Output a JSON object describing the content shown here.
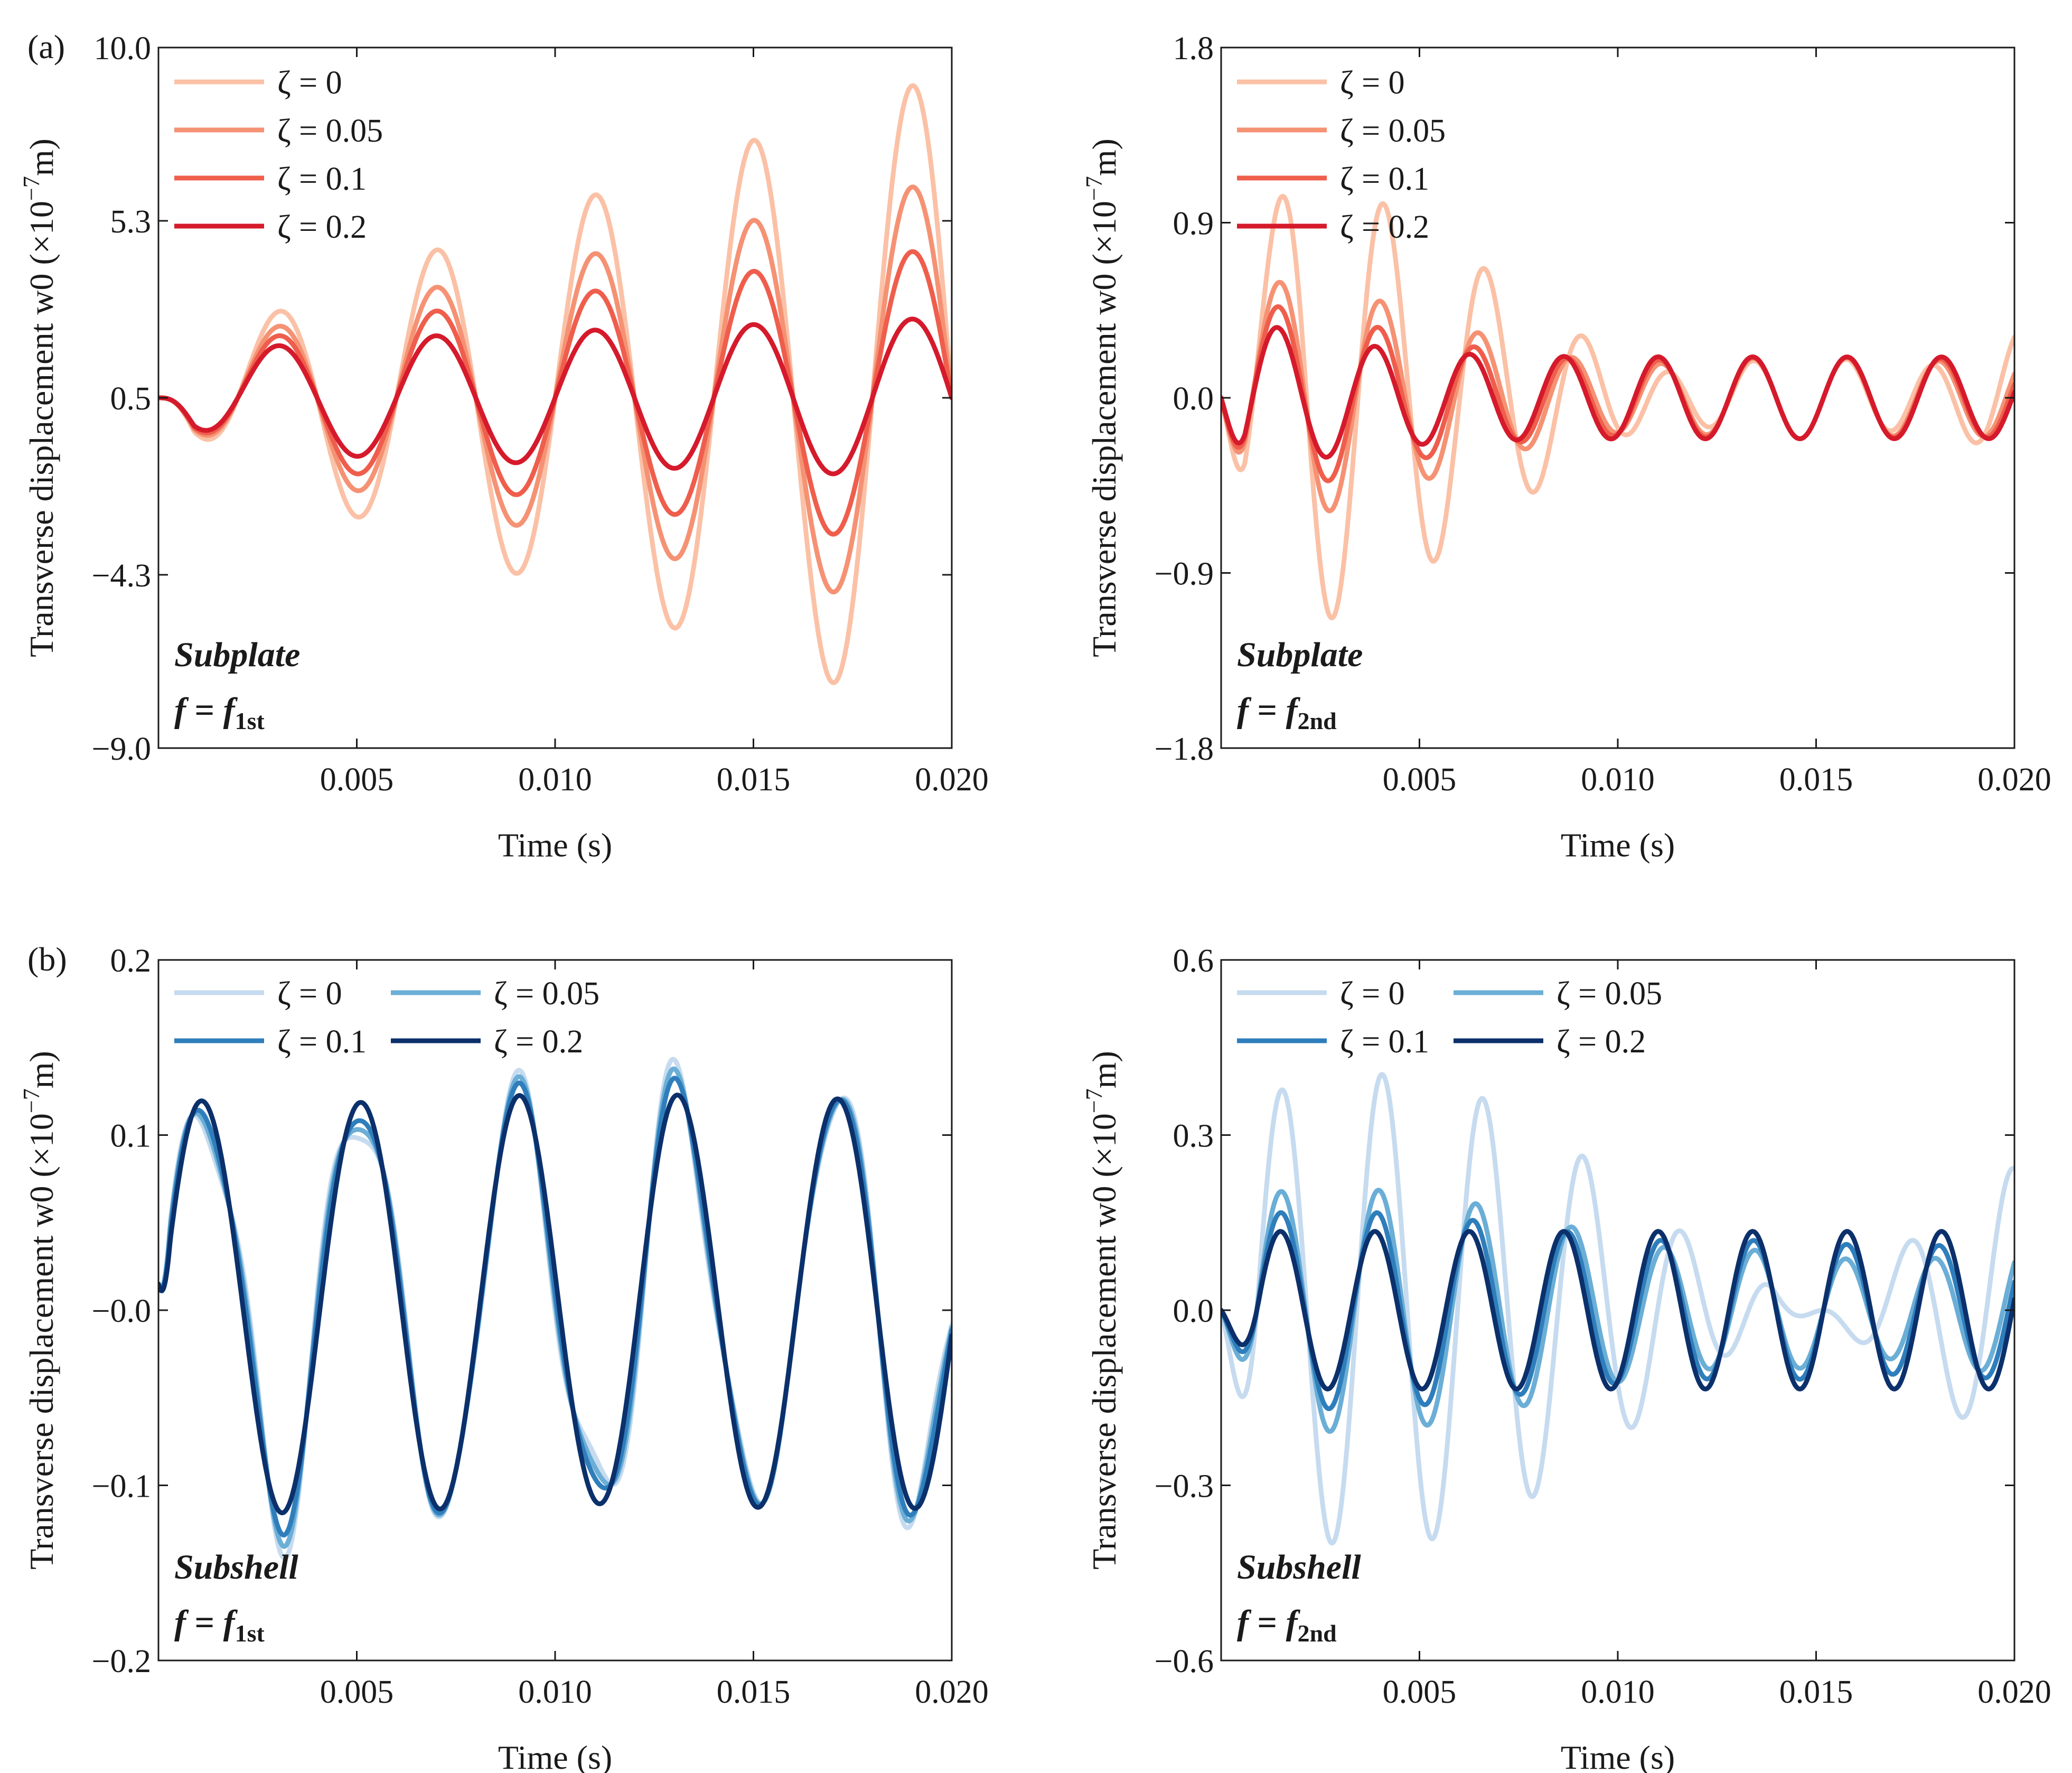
{
  "chart_data": [
    {
      "type": "line",
      "panel_label": "(a)",
      "note_title": "Subplate",
      "note_f": "f",
      "note_eq": " = ",
      "note_fsym": "f",
      "note_sub": "1st",
      "xlabel": "Time (s)",
      "ylabel_main": "Transverse displacement w0 (×10",
      "ylabel_sup": "−7",
      "ylabel_end": "m)",
      "xlim": [
        0,
        0.02
      ],
      "ylim": [
        -9.0,
        10.0
      ],
      "xticks": [
        "0.005",
        "0.010",
        "0.015",
        "0.020"
      ],
      "xtick_values": [
        0.005,
        0.01,
        0.015,
        0.02
      ],
      "yticks": [
        "10.0",
        "5.3",
        "0.5",
        "−4.3",
        "−9.0"
      ],
      "ytick_values": [
        10.0,
        5.3,
        0.5,
        -4.3,
        -9.0
      ],
      "legend_cols": 1,
      "model": {
        "kind": "first",
        "offset": 0.5,
        "freq": 250,
        "beat": 13.5,
        "scale": 0.02
      },
      "series": [
        {
          "name": "ζ = 0",
          "color": "#fbc1a6",
          "damping": 0
        },
        {
          "name": "ζ = 0.05",
          "color": "#f59274",
          "damping": 0.05
        },
        {
          "name": "ζ = 0.1",
          "color": "#ef5e4c",
          "damping": 0.1
        },
        {
          "name": "ζ = 0.2",
          "color": "#d51a2b",
          "damping": 0.2
        }
      ]
    },
    {
      "type": "line",
      "panel_label": "",
      "note_title": "Subplate",
      "note_f": "f",
      "note_eq": " = ",
      "note_fsym": "f",
      "note_sub": "2nd",
      "xlabel": "Time (s)",
      "ylabel_main": "Transverse displacement w0 (×10",
      "ylabel_sup": "−7",
      "ylabel_end": "m)",
      "xlim": [
        0,
        0.02
      ],
      "ylim": [
        -1.8,
        1.8
      ],
      "xticks": [
        "0.005",
        "0.010",
        "0.015",
        "0.020"
      ],
      "xtick_values": [
        0.005,
        0.01,
        0.015,
        0.02
      ],
      "yticks": [
        "1.8",
        "0.9",
        "0.0",
        "−0.9",
        "−1.8"
      ],
      "ytick_values": [
        1.8,
        0.9,
        0.0,
        -0.9,
        -1.8
      ],
      "legend_cols": 1,
      "model": {
        "kind": "second",
        "offset": 0.0,
        "freq": 420,
        "freq2": 382,
        "amp": 0.21,
        "transient": 0.5,
        "tau": 0.002
      },
      "series": [
        {
          "name": "ζ = 0",
          "color": "#fbc1a6",
          "damping": 0
        },
        {
          "name": "ζ = 0.05",
          "color": "#f59274",
          "damping": 0.05
        },
        {
          "name": "ζ = 0.1",
          "color": "#ef5e4c",
          "damping": 0.1
        },
        {
          "name": "ζ = 0.2",
          "color": "#d51a2b",
          "damping": 0.2
        }
      ]
    },
    {
      "type": "line",
      "panel_label": "(b)",
      "note_title": "Subshell",
      "note_f": "f",
      "note_eq": " = ",
      "note_fsym": "f",
      "note_sub": "1st",
      "xlabel": "Time (s)",
      "ylabel_main": "Transverse displacement w0 (×10",
      "ylabel_sup": "−7",
      "ylabel_end": "m)",
      "xlim": [
        0,
        0.02
      ],
      "ylim": [
        -0.2,
        0.2
      ],
      "xticks": [
        "0.005",
        "0.010",
        "0.015",
        "0.020"
      ],
      "xtick_values": [
        0.005,
        0.01,
        0.015,
        0.02
      ],
      "yticks": [
        "0.2",
        "0.1",
        "−0.0",
        "−0.1",
        "−0.2"
      ],
      "ytick_values": [
        0.2,
        0.1,
        0.0,
        -0.1,
        -0.2
      ],
      "legend_cols": 2,
      "model": {
        "kind": "shell1",
        "offset": 0.015,
        "freq": 250,
        "amp": 0.117,
        "wiggle": 0.03,
        "wfreq": 520
      },
      "series": [
        {
          "name": "ζ = 0",
          "color": "#c6dbef",
          "damping": 0
        },
        {
          "name": "ζ = 0.05",
          "color": "#6baed6",
          "damping": 0.05
        },
        {
          "name": "ζ = 0.1",
          "color": "#2f7ebc",
          "damping": 0.1
        },
        {
          "name": "ζ = 0.2",
          "color": "#0b306b",
          "damping": 0.2
        }
      ]
    },
    {
      "type": "line",
      "panel_label": "",
      "note_title": "Subshell",
      "note_f": "f",
      "note_eq": " = ",
      "note_fsym": "f",
      "note_sub": "2nd",
      "xlabel": "Time (s)",
      "ylabel_main": "Transverse displacement w0 (×10",
      "ylabel_sup": "−7",
      "ylabel_end": "m)",
      "xlim": [
        0,
        0.02
      ],
      "ylim": [
        -0.6,
        0.6
      ],
      "xticks": [
        "0.005",
        "0.010",
        "0.015",
        "0.020"
      ],
      "xtick_values": [
        0.005,
        0.01,
        0.015,
        0.02
      ],
      "yticks": [
        "0.6",
        "0.3",
        "0.0",
        "−0.3",
        "−0.6"
      ],
      "ytick_values": [
        0.6,
        0.3,
        0.0,
        -0.3,
        -0.6
      ],
      "legend_cols": 2,
      "model": {
        "kind": "shell2",
        "offset": 0.0,
        "freq": 420,
        "freq2": 385,
        "amp": 0.135
      },
      "series": [
        {
          "name": "ζ = 0",
          "color": "#c6dbef",
          "damping": 0
        },
        {
          "name": "ζ = 0.05",
          "color": "#6baed6",
          "damping": 0.05
        },
        {
          "name": "ζ = 0.1",
          "color": "#2f7ebc",
          "damping": 0.1
        },
        {
          "name": "ζ = 0.2",
          "color": "#0b306b",
          "damping": 0.2
        }
      ]
    }
  ]
}
